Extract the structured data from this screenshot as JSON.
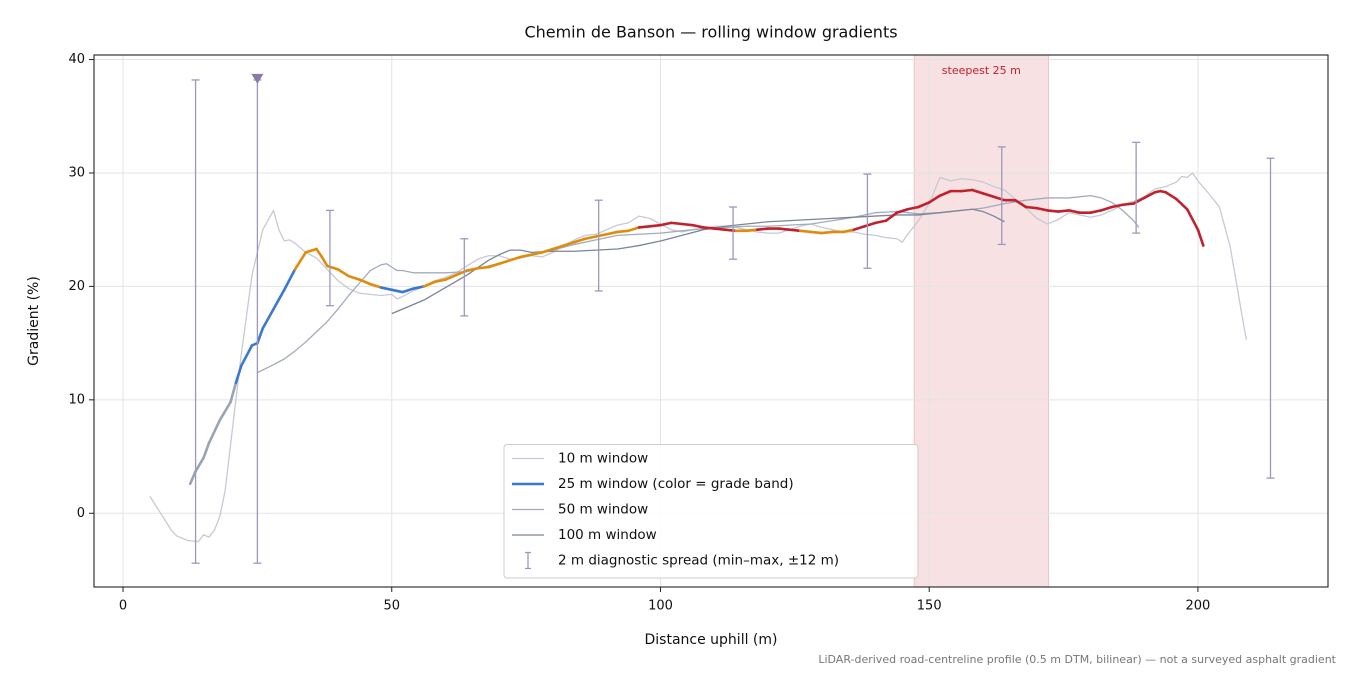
{
  "chart_data": {
    "type": "line",
    "title": "Chemin de Banson — rolling window gradients",
    "x_label": "Distance uphill (m)",
    "y_label": "Gradient (%)",
    "footnote": "LiDAR-derived road-centreline profile (0.5 m DTM, bilinear) — not a surveyed asphalt gradient",
    "xlim": [
      -5.4,
      224.2
    ],
    "ylim": [
      -6.5,
      40.4
    ],
    "xticks": [
      0,
      50,
      100,
      150,
      200
    ],
    "yticks": [
      0,
      10,
      20,
      30,
      40
    ],
    "grid": true,
    "legend": "lower center",
    "span": {
      "x0": 147.2,
      "x1": 172.2,
      "label": "steepest 25 m",
      "color": "#f0c9cc",
      "label_color": "#c0212d"
    },
    "series": [
      {
        "name": "10 m window",
        "color": "#c5cad6",
        "width": 1.3,
        "x": [
          5,
          9,
          10,
          12,
          14,
          15,
          16,
          17,
          18,
          19,
          20,
          21,
          22,
          23,
          24,
          25,
          26,
          28,
          29,
          30,
          31,
          32,
          34,
          36,
          38,
          40,
          42,
          44,
          46,
          48,
          50,
          51,
          52,
          54,
          56,
          58,
          60,
          62,
          64,
          66,
          68,
          70,
          72,
          74,
          76,
          78,
          80,
          82,
          84,
          86,
          88,
          90,
          92,
          94,
          96,
          98,
          100,
          102,
          104,
          106,
          108,
          110,
          112,
          114,
          116,
          118,
          120,
          122,
          124,
          126,
          128,
          130,
          132,
          134,
          136,
          138,
          140,
          142,
          144,
          145,
          146,
          148,
          150,
          152,
          154,
          156,
          158,
          160,
          162,
          164,
          166,
          168,
          170,
          172,
          174,
          176,
          178,
          180,
          182,
          184,
          186,
          188,
          190,
          192,
          194,
          196,
          197,
          198,
          199,
          200,
          202,
          204,
          206,
          208,
          209
        ],
        "values": [
          1.5,
          -1.5,
          -2,
          -2.4,
          -2.5,
          -1.9,
          -2.1,
          -1.5,
          -0.3,
          2,
          6,
          10,
          14,
          17.5,
          21,
          23,
          25,
          26.7,
          25,
          24,
          24.1,
          23.8,
          23,
          22.5,
          21.5,
          20.5,
          19.8,
          19.4,
          19.3,
          19.2,
          19.3,
          18.9,
          19.1,
          19.6,
          20,
          20.5,
          20.8,
          21.2,
          21.8,
          22.4,
          22.7,
          22.7,
          22.4,
          22.5,
          22.7,
          22.6,
          23,
          23.6,
          24.1,
          24.5,
          24.6,
          25,
          25.4,
          25.6,
          26.2,
          26,
          25.5,
          25,
          24.8,
          25,
          25.1,
          25.3,
          25.3,
          25.2,
          25,
          24.8,
          24.7,
          24.7,
          25,
          25.3,
          25.5,
          25.2,
          25,
          24.8,
          24.8,
          24.6,
          24.5,
          24.3,
          24.2,
          23.9,
          24.6,
          25.8,
          27.3,
          29.6,
          29.3,
          29.5,
          29.4,
          29.2,
          28.8,
          28.5,
          27.7,
          26.9,
          26,
          25.5,
          25.9,
          26.5,
          26.3,
          26.1,
          26.3,
          26.7,
          27.2,
          27.5,
          27.9,
          28.6,
          28.8,
          29.2,
          29.7,
          29.6,
          30,
          29.3,
          28.2,
          27,
          23.5,
          18,
          15.3
        ]
      },
      {
        "name": "50 m window",
        "color": "#a3abbb",
        "width": 1.3,
        "x": [
          25,
          28,
          30,
          32,
          34,
          36,
          38,
          40,
          42,
          44,
          46,
          48,
          49,
          50,
          51,
          52,
          54,
          56,
          60,
          64,
          68,
          72,
          76,
          80,
          84,
          88,
          92,
          96,
          100,
          104,
          108,
          112,
          116,
          120,
          124,
          128,
          132,
          136,
          140,
          144,
          148,
          152,
          156,
          160,
          164,
          168,
          172,
          176,
          180,
          182,
          184,
          186,
          188,
          189
        ],
        "values": [
          12.4,
          13.1,
          13.6,
          14.3,
          15.1,
          16,
          16.9,
          18,
          19.2,
          20.3,
          21.4,
          21.9,
          22,
          21.7,
          21.4,
          21.4,
          21.2,
          21.2,
          21.2,
          21.3,
          21.8,
          22.3,
          22.8,
          23.2,
          23.7,
          24.1,
          24.5,
          24.6,
          24.7,
          24.9,
          25.1,
          25.2,
          25.3,
          25.3,
          25.4,
          25.5,
          25.8,
          26.1,
          26.5,
          26.6,
          26.4,
          26.5,
          26.7,
          26.9,
          27.3,
          27.6,
          27.8,
          27.8,
          28,
          27.8,
          27.4,
          26.7,
          25.8,
          25.2
        ]
      },
      {
        "name": "100 m window",
        "color": "#7b8597",
        "width": 1.3,
        "x": [
          50,
          52,
          56,
          60,
          64,
          68,
          70,
          72,
          74,
          76,
          80,
          84,
          88,
          92,
          96,
          100,
          104,
          108,
          112,
          116,
          120,
          124,
          128,
          132,
          136,
          140,
          144,
          148,
          152,
          156,
          158,
          160,
          162,
          164
        ],
        "values": [
          17.6,
          18,
          18.8,
          19.9,
          21,
          22.3,
          22.8,
          23.2,
          23.2,
          23,
          23.1,
          23.1,
          23.2,
          23.3,
          23.6,
          24,
          24.5,
          25,
          25.3,
          25.5,
          25.7,
          25.8,
          25.9,
          26,
          26.1,
          26.2,
          26.3,
          26.3,
          26.5,
          26.7,
          26.8,
          26.6,
          26.2,
          25.7
        ]
      },
      {
        "name": "25 m window (color = grade band)",
        "color": "#3a78d4",
        "width": 2.6,
        "x": [
          12.5,
          13.5,
          15,
          16,
          18,
          20,
          21,
          22,
          24,
          25,
          26,
          28,
          30,
          32,
          34,
          36,
          37,
          38,
          40,
          42,
          44,
          46,
          48,
          50,
          52,
          54,
          56,
          58,
          60,
          62,
          64,
          66,
          68,
          70,
          72,
          74,
          76,
          78,
          80,
          82,
          84,
          86,
          88,
          90,
          92,
          94,
          96,
          98,
          100,
          102,
          104,
          106,
          108,
          110,
          112,
          114,
          116,
          118,
          120,
          122,
          124,
          126,
          128,
          130,
          132,
          134,
          136,
          138,
          140,
          142,
          144,
          146,
          148,
          150,
          152,
          154,
          156,
          158,
          160,
          162,
          164,
          166,
          168,
          170,
          172,
          174,
          176,
          178,
          180,
          182,
          184,
          186,
          188,
          190,
          192,
          193,
          194,
          196,
          198,
          200,
          201
        ],
        "values": [
          2.6,
          3.7,
          4.9,
          6.2,
          8.2,
          9.8,
          11.5,
          13,
          14.8,
          15,
          16.3,
          18,
          19.7,
          21.5,
          23,
          23.3,
          22.6,
          21.8,
          21.5,
          20.9,
          20.6,
          20.2,
          19.9,
          19.7,
          19.5,
          19.8,
          20,
          20.4,
          20.6,
          21,
          21.4,
          21.6,
          21.7,
          22,
          22.3,
          22.6,
          22.8,
          23,
          23.3,
          23.6,
          23.9,
          24.2,
          24.4,
          24.6,
          24.8,
          24.9,
          25.2,
          25.3,
          25.4,
          25.6,
          25.5,
          25.4,
          25.2,
          25.1,
          25,
          24.9,
          24.9,
          25,
          25.1,
          25.1,
          25,
          24.9,
          24.8,
          24.7,
          24.8,
          24.8,
          25,
          25.3,
          25.6,
          25.8,
          26.5,
          26.8,
          27,
          27.4,
          28,
          28.4,
          28.4,
          28.5,
          28.2,
          27.9,
          27.6,
          27.6,
          27,
          26.9,
          26.7,
          26.6,
          26.7,
          26.5,
          26.5,
          26.7,
          27,
          27.2,
          27.3,
          27.8,
          28.3,
          28.4,
          28.3,
          27.7,
          26.8,
          25,
          23.6
        ],
        "colors": [
          "#9aa3b3",
          "#9aa3b3",
          "#9aa3b3",
          "#9aa3b3",
          "#9aa3b3",
          "#9aa3b3",
          "#3a78d4",
          "#3a78d4",
          "#3a78d4",
          "#3a78d4",
          "#3a78d4",
          "#3a78d4",
          "#3a78d4",
          "#e08c0a",
          "#e08c0a",
          "#e08c0a",
          "#e08c0a",
          "#e08c0a",
          "#e08c0a",
          "#e08c0a",
          "#e08c0a",
          "#e08c0a",
          "#3a78d4",
          "#3a78d4",
          "#3a78d4",
          "#3a78d4",
          "#e08c0a",
          "#e08c0a",
          "#e08c0a",
          "#e08c0a",
          "#e08c0a",
          "#e08c0a",
          "#e08c0a",
          "#e08c0a",
          "#e08c0a",
          "#e08c0a",
          "#e08c0a",
          "#e08c0a",
          "#e08c0a",
          "#e08c0a",
          "#e08c0a",
          "#e08c0a",
          "#e08c0a",
          "#e08c0a",
          "#e08c0a",
          "#e08c0a",
          "#c0212d",
          "#c0212d",
          "#c0212d",
          "#c0212d",
          "#c0212d",
          "#c0212d",
          "#c0212d",
          "#c0212d",
          "#c0212d",
          "#e08c0a",
          "#e08c0a",
          "#c0212d",
          "#c0212d",
          "#c0212d",
          "#c0212d",
          "#e08c0a",
          "#e08c0a",
          "#e08c0a",
          "#e08c0a",
          "#e08c0a",
          "#c0212d",
          "#c0212d",
          "#c0212d",
          "#c0212d",
          "#c0212d",
          "#c0212d",
          "#c0212d",
          "#c0212d",
          "#c0212d",
          "#c0212d",
          "#c0212d",
          "#c0212d",
          "#c0212d",
          "#c0212d",
          "#c0212d",
          "#c0212d",
          "#c0212d",
          "#c0212d",
          "#c0212d",
          "#c0212d",
          "#c0212d",
          "#c0212d",
          "#c0212d",
          "#c0212d",
          "#c0212d",
          "#c0212d",
          "#c0212d",
          "#c0212d",
          "#c0212d",
          "#c0212d",
          "#c0212d",
          "#c0212d",
          "#c0212d",
          "#c0212d",
          "#e08c0a"
        ]
      }
    ],
    "error_bars": {
      "name": "2 m diagnostic spread (min–max, ±12 m)",
      "color": "#9d97bf",
      "x": [
        13.5,
        25,
        38.5,
        63.5,
        88.5,
        113.5,
        138.5,
        163.5,
        188.5,
        213.5
      ],
      "min": [
        -4.4,
        -4.4,
        18.3,
        17.4,
        19.6,
        22.4,
        21.6,
        23.7,
        24.7,
        3.1
      ],
      "max": [
        38.2,
        38.2,
        26.7,
        24.2,
        27.6,
        27,
        29.9,
        32.3,
        32.7,
        31.3
      ]
    },
    "peak_marker": {
      "x": 25,
      "y": 38.3,
      "color": "#8b7aa8"
    }
  }
}
